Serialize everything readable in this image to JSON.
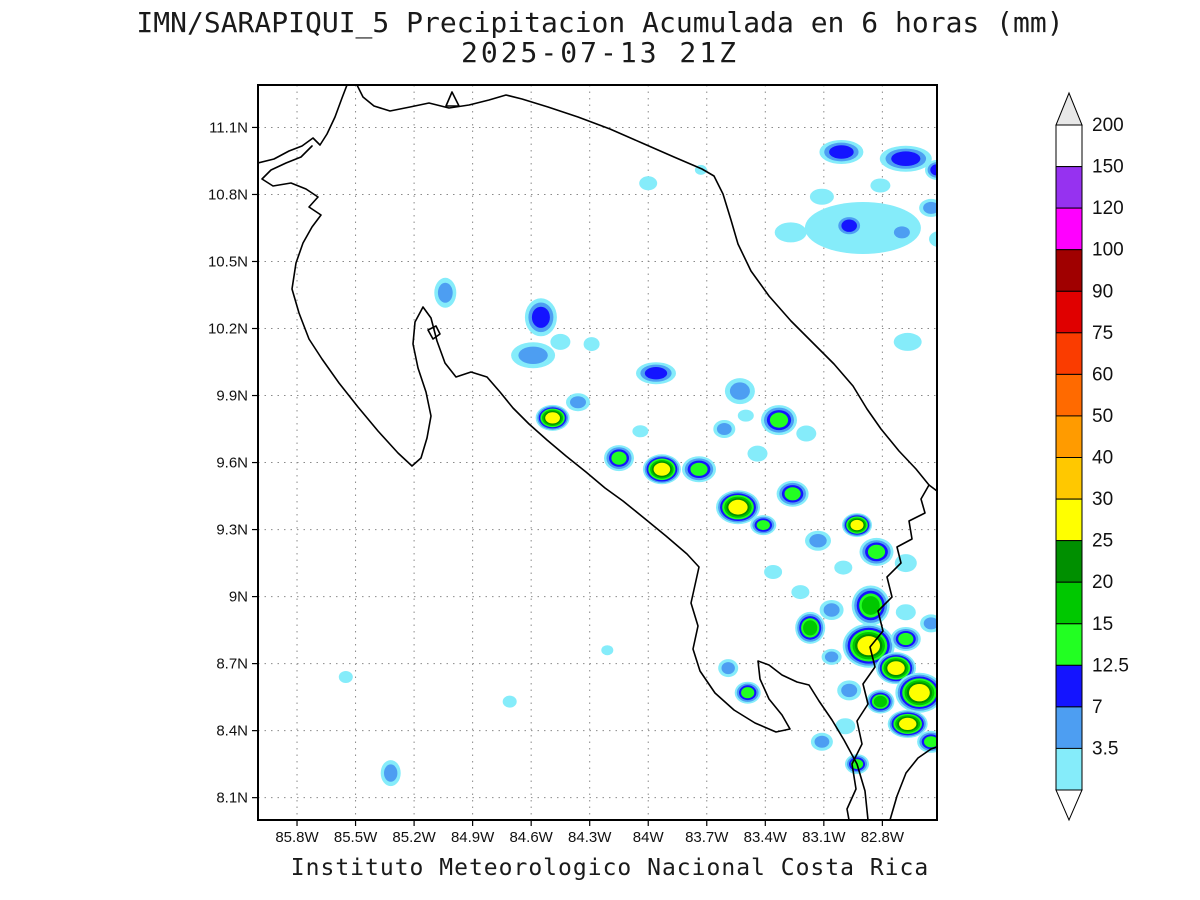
{
  "header": {
    "title": "IMN/SARAPIQUI_5 Precipitacion Acumulada en 6 horas (mm)",
    "subtitle": "2025-07-13 21Z"
  },
  "footer": {
    "credit": "Instituto Meteorologico Nacional Costa Rica"
  },
  "axes": {
    "lat_tick_labels": [
      "11.1N",
      "10.8N",
      "10.5N",
      "10.2N",
      "9.9N",
      "9.6N",
      "9.3N",
      "9N",
      "8.7N",
      "8.4N",
      "8.1N"
    ],
    "lat_tick_values": [
      11.1,
      10.8,
      10.5,
      10.2,
      9.9,
      9.6,
      9.3,
      9.0,
      8.7,
      8.4,
      8.1
    ],
    "lon_tick_labels": [
      "85.8W",
      "85.5W",
      "85.2W",
      "84.9W",
      "84.6W",
      "84.3W",
      "84W",
      "83.7W",
      "83.4W",
      "83.1W",
      "82.8W"
    ],
    "lon_tick_values": [
      85.8,
      85.5,
      85.2,
      84.9,
      84.6,
      84.3,
      84.0,
      83.7,
      83.4,
      83.1,
      82.8
    ]
  },
  "colorbar": {
    "labels_top_to_bottom": [
      "200",
      "150",
      "120",
      "100",
      "90",
      "75",
      "60",
      "50",
      "40",
      "30",
      "25",
      "20",
      "15",
      "12.5",
      "7",
      "3.5"
    ],
    "band_colors_top_to_bottom": [
      "#ffffff",
      "#9632f0",
      "#ff00ff",
      "#a00000",
      "#e00000",
      "#fa3c00",
      "#ff6a00",
      "#ff9b00",
      "#ffc800",
      "#ffff00",
      "#008f00",
      "#00c800",
      "#22ff22",
      "#1414ff",
      "#4d9ef2",
      "#85ecfa"
    ],
    "over_color": "#e8e8e8",
    "under_color": "#ffffff"
  },
  "chart_data": {
    "type": "heatmap",
    "title": "IMN/SARAPIQUI_5 Precipitacion Acumulada en 6 horas (mm)",
    "valid_time": "2025-07-13 21Z",
    "units": "mm",
    "extent": {
      "lon_west": 86.0,
      "lon_east": 82.52,
      "lat_south": 8.0,
      "lat_north": 11.29
    },
    "levels_mm": [
      3.5,
      7,
      12.5,
      15,
      20,
      25,
      30
    ],
    "level_colors": [
      "#85ecfa",
      "#4d9ef2",
      "#1414ff",
      "#22ff22",
      "#00c800",
      "#008f00",
      "#ffff00"
    ],
    "cells_format": "[lon_deg_west, lat_deg_north, radius_x_px, radius_y_px, max_level_mm]",
    "cells": [
      [
        84.0,
        10.85,
        9,
        7,
        3.5
      ],
      [
        83.73,
        10.91,
        6,
        5,
        3.5
      ],
      [
        83.27,
        10.63,
        16,
        10,
        3.5
      ],
      [
        83.01,
        10.99,
        22,
        12,
        12.5
      ],
      [
        82.68,
        10.96,
        26,
        13,
        12.5
      ],
      [
        82.52,
        10.91,
        12,
        10,
        12.5
      ],
      [
        82.9,
        10.65,
        58,
        26,
        3.5
      ],
      [
        82.97,
        10.66,
        14,
        11,
        12.5
      ],
      [
        82.7,
        10.63,
        12,
        9,
        7
      ],
      [
        82.55,
        10.74,
        12,
        9,
        7
      ],
      [
        83.11,
        10.79,
        12,
        8,
        3.5
      ],
      [
        82.81,
        10.84,
        10,
        7,
        3.5
      ],
      [
        85.04,
        10.36,
        11,
        15,
        7
      ],
      [
        84.55,
        10.25,
        16,
        19,
        12.5
      ],
      [
        84.59,
        10.08,
        22,
        13,
        7
      ],
      [
        84.45,
        10.14,
        10,
        8,
        3.5
      ],
      [
        84.29,
        10.13,
        8,
        7,
        3.5
      ],
      [
        83.96,
        10.0,
        20,
        11,
        12.5
      ],
      [
        83.53,
        9.92,
        15,
        13,
        7
      ],
      [
        84.49,
        9.8,
        17,
        13,
        30
      ],
      [
        84.36,
        9.87,
        12,
        9,
        7
      ],
      [
        84.15,
        9.62,
        15,
        13,
        15
      ],
      [
        83.93,
        9.57,
        19,
        15,
        30
      ],
      [
        83.74,
        9.57,
        17,
        13,
        15
      ],
      [
        84.04,
        9.74,
        8,
        6,
        3.5
      ],
      [
        83.61,
        9.75,
        11,
        9,
        7
      ],
      [
        83.44,
        9.64,
        10,
        8,
        3.5
      ],
      [
        83.33,
        9.79,
        18,
        15,
        15
      ],
      [
        83.19,
        9.73,
        10,
        8,
        3.5
      ],
      [
        83.5,
        9.81,
        8,
        6,
        3.5
      ],
      [
        83.54,
        9.4,
        22,
        17,
        30
      ],
      [
        83.41,
        9.32,
        13,
        10,
        15
      ],
      [
        83.26,
        9.46,
        16,
        13,
        15
      ],
      [
        83.13,
        9.25,
        13,
        10,
        7
      ],
      [
        82.93,
        9.32,
        15,
        12,
        30
      ],
      [
        82.83,
        9.2,
        17,
        14,
        15
      ],
      [
        82.68,
        9.15,
        11,
        9,
        3.5
      ],
      [
        83.0,
        9.13,
        9,
        7,
        3.5
      ],
      [
        83.06,
        8.94,
        12,
        10,
        7
      ],
      [
        82.86,
        8.96,
        19,
        20,
        20
      ],
      [
        82.68,
        8.93,
        10,
        8,
        3.5
      ],
      [
        83.17,
        8.86,
        15,
        16,
        20
      ],
      [
        82.87,
        8.78,
        26,
        22,
        30
      ],
      [
        82.68,
        8.81,
        15,
        12,
        15
      ],
      [
        82.55,
        8.88,
        11,
        9,
        7
      ],
      [
        82.73,
        8.68,
        20,
        16,
        30
      ],
      [
        82.61,
        8.57,
        24,
        20,
        30
      ],
      [
        82.81,
        8.53,
        14,
        12,
        20
      ],
      [
        82.97,
        8.58,
        12,
        10,
        7
      ],
      [
        82.67,
        8.43,
        20,
        14,
        30
      ],
      [
        82.55,
        8.35,
        14,
        11,
        15
      ],
      [
        82.99,
        8.42,
        10,
        8,
        3.5
      ],
      [
        83.06,
        8.73,
        10,
        8,
        7
      ],
      [
        83.59,
        8.68,
        10,
        9,
        7
      ],
      [
        83.49,
        8.57,
        13,
        11,
        15
      ],
      [
        84.21,
        8.76,
        6,
        5,
        3.5
      ],
      [
        84.71,
        8.53,
        7,
        6,
        3.5
      ],
      [
        85.55,
        8.64,
        7,
        6,
        3.5
      ],
      [
        85.32,
        8.21,
        10,
        13,
        7
      ],
      [
        83.11,
        8.35,
        11,
        9,
        7
      ],
      [
        82.93,
        8.25,
        12,
        10,
        15
      ],
      [
        83.22,
        9.02,
        9,
        7,
        3.5
      ],
      [
        83.36,
        9.11,
        9,
        7,
        3.5
      ],
      [
        82.67,
        10.14,
        14,
        9,
        3.5
      ],
      [
        82.51,
        10.6,
        10,
        8,
        3.5
      ]
    ]
  }
}
